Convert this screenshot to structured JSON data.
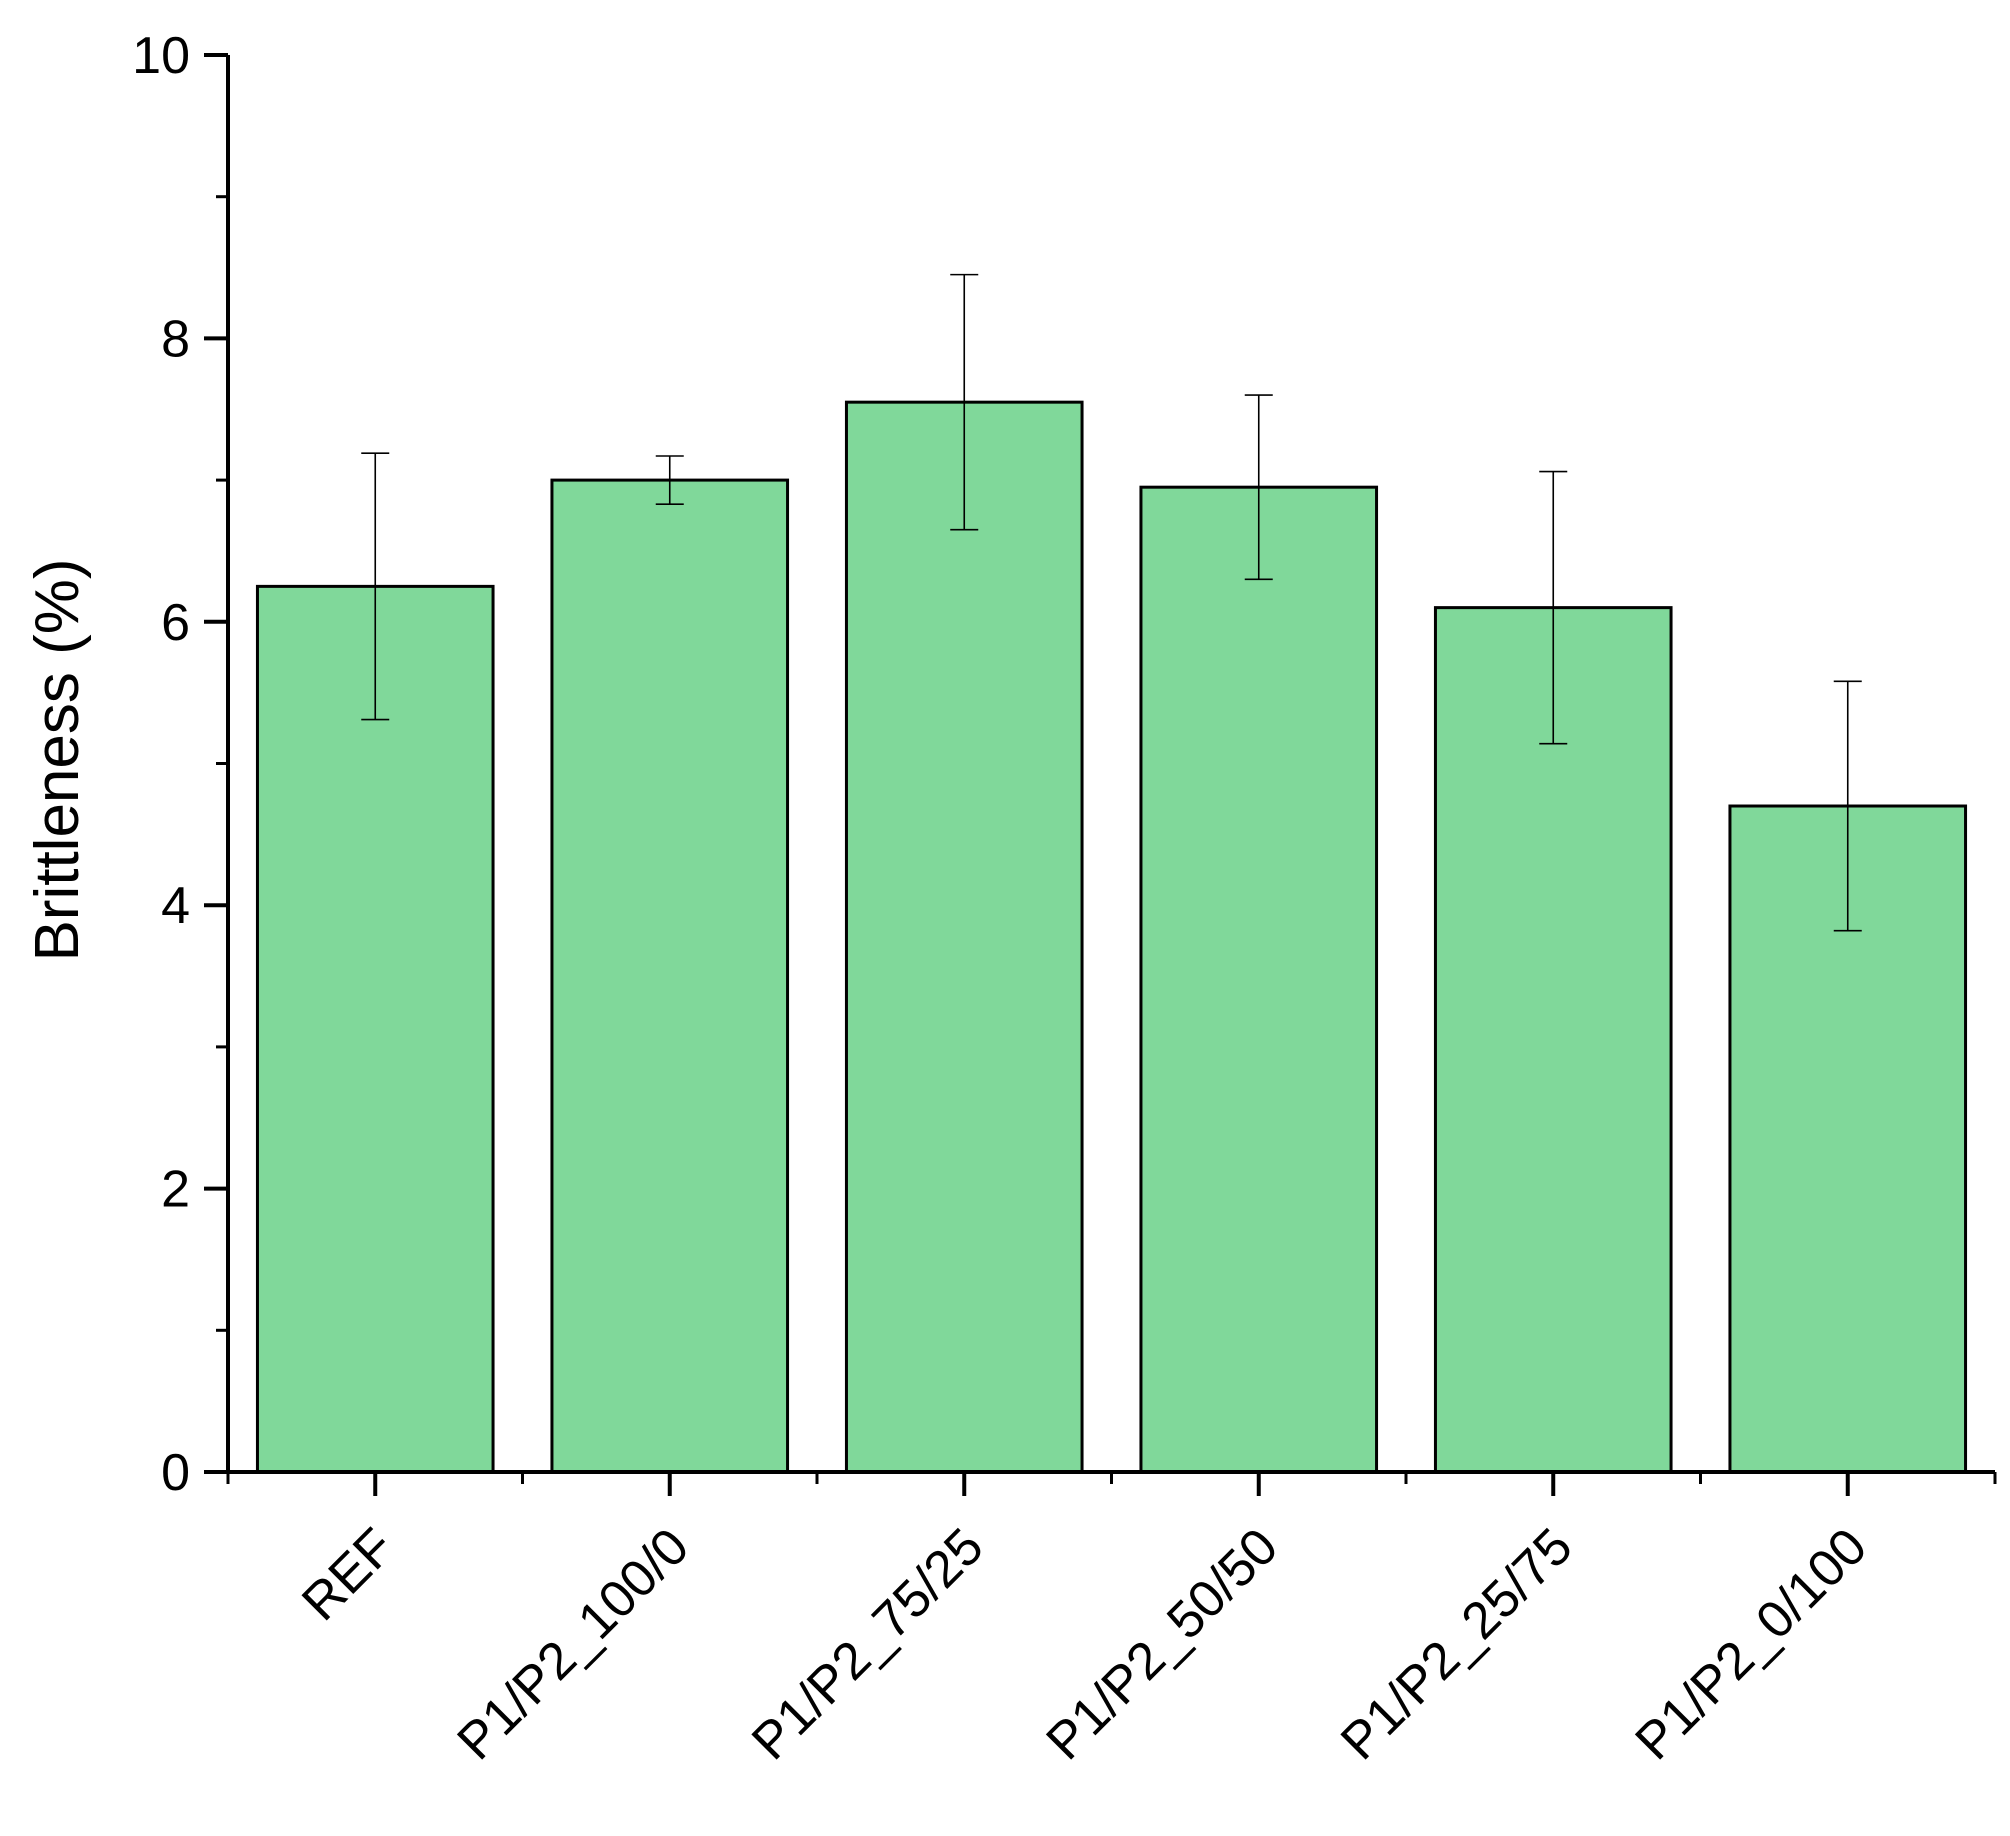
{
  "chart_data": {
    "type": "bar",
    "title": "",
    "xlabel": "",
    "ylabel": "Brittleness (%)",
    "ylim": [
      0,
      10
    ],
    "yticks": [
      "0",
      "2",
      "4",
      "6",
      "8",
      "10"
    ],
    "y_minor_step": 1,
    "grid": false,
    "categories": [
      "REF",
      "P1/P2_100/0",
      "P1/P2_75/25",
      "P1/P2_50/50",
      "P1/P2_25/75",
      "P1/P2_0/100"
    ],
    "values": [
      6.25,
      7.0,
      7.55,
      6.95,
      6.1,
      4.7
    ],
    "errors": [
      0.94,
      0.17,
      0.9,
      0.65,
      0.96,
      0.88
    ],
    "bar_color": "#80d89a",
    "edge_color": "#000000"
  }
}
